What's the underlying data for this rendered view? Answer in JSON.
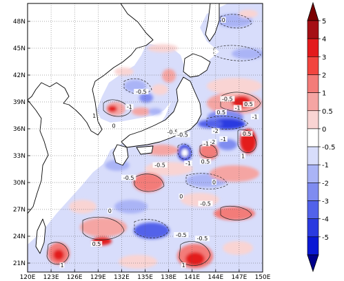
{
  "map": {
    "lon_labels": [
      "120E",
      "123E",
      "126E",
      "129E",
      "132E",
      "135E",
      "138E",
      "141E",
      "144E",
      "147E",
      "150E"
    ],
    "lat_labels": [
      "21N",
      "24N",
      "27N",
      "30N",
      "33N",
      "36N",
      "39N",
      "42N",
      "45N",
      "48N"
    ],
    "lon_range": [
      120,
      150
    ],
    "lat_range": [
      20,
      50
    ],
    "grid": "dotted"
  },
  "colorbar": {
    "labels": [
      "5",
      "4",
      "3",
      "2",
      "1",
      "0.5",
      "0",
      "-0.5",
      "-1",
      "-2",
      "-3",
      "-4",
      "-5"
    ],
    "colors": [
      "#a50f15",
      "#e31a1c",
      "#f2453f",
      "#f37c79",
      "#f5a5a3",
      "#f9d4d3",
      "#ffffff",
      "#d8ddfb",
      "#aab4f6",
      "#7f8cf0",
      "#5262ea",
      "#2a3ae0",
      "#0a18d4"
    ],
    "arrow_top_color": "#7a0000",
    "arrow_bottom_color": "#00008b"
  },
  "contour_labels": [
    {
      "text": "0",
      "lon": 145.0,
      "lat": 48.0
    },
    {
      "text": "-0.5",
      "lon": 134.5,
      "lat": 40.0
    },
    {
      "text": "-1",
      "lon": 133.0,
      "lat": 38.3
    },
    {
      "text": "-0.5",
      "lon": 138.5,
      "lat": 35.5
    },
    {
      "text": "0",
      "lon": 131.0,
      "lat": 36.2
    },
    {
      "text": "1",
      "lon": 128.5,
      "lat": 37.3
    },
    {
      "text": "-0.5",
      "lon": 145.5,
      "lat": 39.2
    },
    {
      "text": "-1",
      "lon": 146.8,
      "lat": 38.2
    },
    {
      "text": "0.5",
      "lon": 144.7,
      "lat": 37.7
    },
    {
      "text": "0.5",
      "lon": 148.2,
      "lat": 38.6
    },
    {
      "text": "-1",
      "lon": 149.0,
      "lat": 37.2
    },
    {
      "text": "-2",
      "lon": 144.0,
      "lat": 35.6
    },
    {
      "text": "0.5",
      "lon": 148.0,
      "lat": 35.3
    },
    {
      "text": "-1",
      "lon": 145.0,
      "lat": 34.7
    },
    {
      "text": "-2",
      "lon": 143.6,
      "lat": 34.4
    },
    {
      "text": "1",
      "lon": 147.5,
      "lat": 32.8
    },
    {
      "text": "0.5",
      "lon": 142.7,
      "lat": 32.2
    },
    {
      "text": "-1",
      "lon": 142.8,
      "lat": 34.2
    },
    {
      "text": "-0.5",
      "lon": 139.8,
      "lat": 35.2
    },
    {
      "text": "-0.5",
      "lon": 136.9,
      "lat": 31.8
    },
    {
      "text": "-1",
      "lon": 140.5,
      "lat": 32.0
    },
    {
      "text": "-0.5",
      "lon": 132.9,
      "lat": 30.4
    },
    {
      "text": "0",
      "lon": 143.8,
      "lat": 29.9
    },
    {
      "text": "-0.5",
      "lon": 142.7,
      "lat": 27.5
    },
    {
      "text": "0",
      "lon": 139.6,
      "lat": 28.3
    },
    {
      "text": "0",
      "lon": 130.5,
      "lat": 26.7
    },
    {
      "text": "-0.5",
      "lon": 139.6,
      "lat": 24.0
    },
    {
      "text": "0.5",
      "lon": 128.8,
      "lat": 23.0
    },
    {
      "text": "-0.5",
      "lon": 142.3,
      "lat": 23.6
    },
    {
      "text": "1",
      "lon": 124.4,
      "lat": 20.6
    },
    {
      "text": "1",
      "lon": 139.9,
      "lat": 20.6
    }
  ]
}
